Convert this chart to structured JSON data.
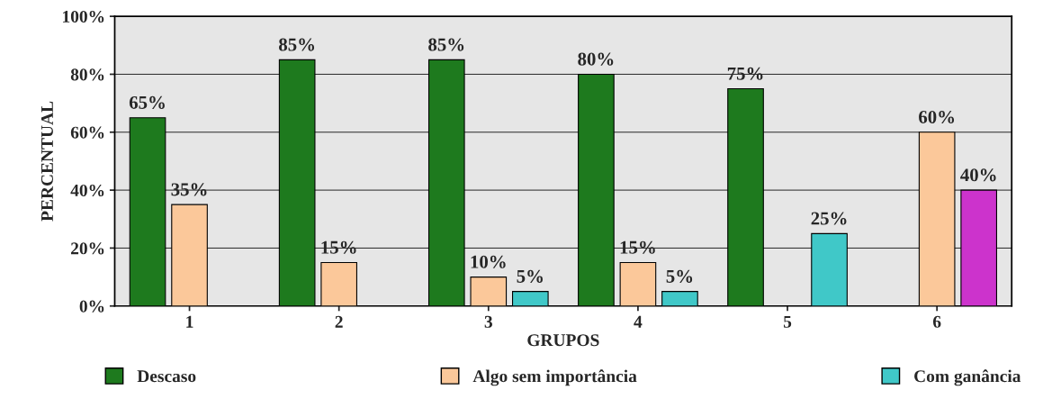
{
  "chart_data": {
    "type": "bar",
    "xlabel": "GRUPOS",
    "ylabel": "PERCENTUAL",
    "categories": [
      "1",
      "2",
      "3",
      "4",
      "5",
      "6"
    ],
    "series": [
      {
        "name": "Descaso",
        "color": "#1e7a1e",
        "values": [
          65,
          85,
          85,
          80,
          75,
          null
        ],
        "value_labels": [
          "65%",
          "85%",
          "85%",
          "80%",
          "75%",
          null
        ]
      },
      {
        "name": "Algo sem importância",
        "color": "#fbc89a",
        "values": [
          35,
          15,
          10,
          15,
          null,
          60
        ],
        "value_labels": [
          "35%",
          "15%",
          "10%",
          "15%",
          null,
          "60%"
        ]
      },
      {
        "name": "Com ganância",
        "color": "#40c8c8",
        "colors": [
          "#40c8c8",
          "#40c8c8",
          "#40c8c8",
          "#40c8c8",
          "#40c8c8",
          "#cc33cc"
        ],
        "values": [
          null,
          null,
          5,
          5,
          25,
          40
        ],
        "value_labels": [
          null,
          null,
          "5%",
          "5%",
          "25%",
          "40%"
        ]
      }
    ],
    "ylim": [
      0,
      100
    ],
    "yticks": [
      {
        "value": 0,
        "label": "0%"
      },
      {
        "value": 20,
        "label": "20%"
      },
      {
        "value": 40,
        "label": "40%"
      },
      {
        "value": 60,
        "label": "60%"
      },
      {
        "value": 80,
        "label": "80%"
      },
      {
        "value": 100,
        "label": "100%"
      }
    ],
    "grid": "y",
    "legend": "bottom"
  }
}
